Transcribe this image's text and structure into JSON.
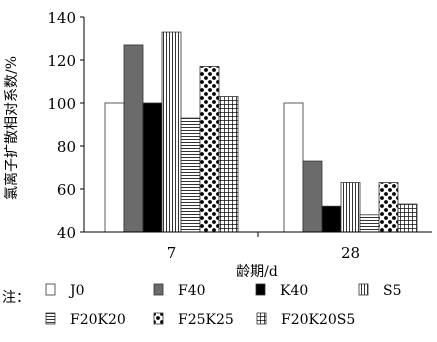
{
  "chart_data": {
    "type": "bar",
    "categories": [
      "7",
      "28"
    ],
    "series": [
      {
        "name": "J0",
        "values": [
          100,
          100
        ]
      },
      {
        "name": "F40",
        "values": [
          127,
          73
        ]
      },
      {
        "name": "K40",
        "values": [
          100,
          52
        ]
      },
      {
        "name": "S5",
        "values": [
          133,
          63
        ]
      },
      {
        "name": "F20K20",
        "values": [
          93,
          48
        ]
      },
      {
        "name": "F25K25",
        "values": [
          117,
          63
        ]
      },
      {
        "name": "F20K20S5",
        "values": [
          103,
          53
        ]
      }
    ],
    "xlabel": "龄期/d",
    "ylabel": "氯离子扩散相对系数/%",
    "ylim": [
      40,
      140
    ],
    "yticks": [
      40,
      60,
      80,
      100,
      120,
      140
    ],
    "grid": false,
    "legend_position": "bottom",
    "legend_note": "注："
  }
}
